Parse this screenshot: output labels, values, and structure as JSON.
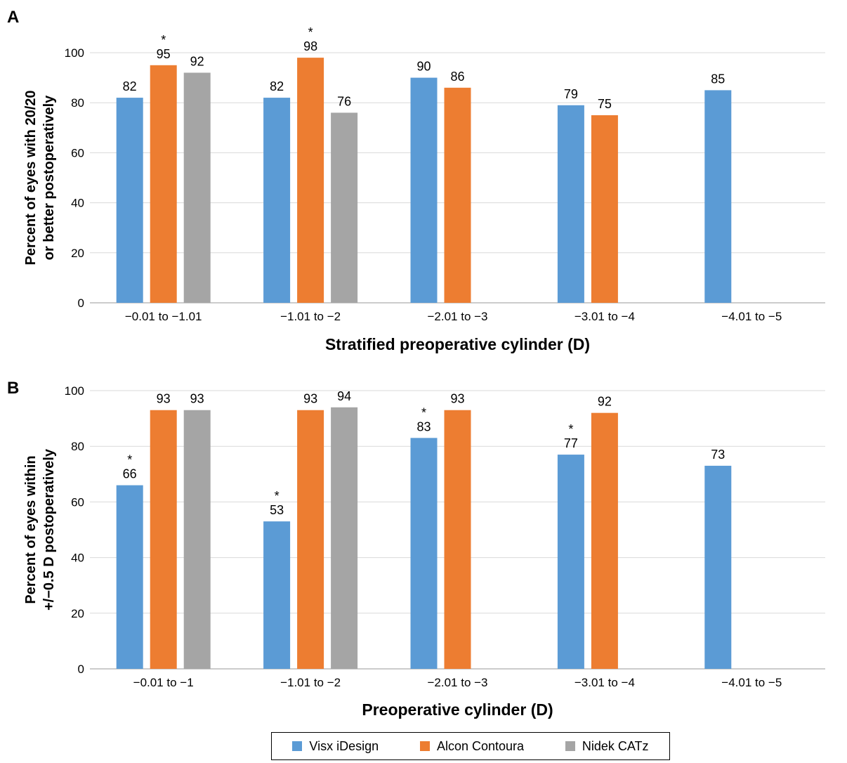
{
  "colors": {
    "Visx iDesign": "#5b9bd5",
    "Alcon Contoura": "#ed7d31",
    "Nidek CATz": "#a5a5a5"
  },
  "legend": [
    "Visx iDesign",
    "Alcon Contoura",
    "Nidek CATz"
  ],
  "chart_data": [
    {
      "panel": "A",
      "type": "bar",
      "ylabel_lines": [
        "Percent of eyes with 20/20",
        "or better postoperatively"
      ],
      "xlabel": "Stratified preoperative cylinder (D)",
      "categories": [
        "−0.01 to −1.01",
        "−1.01 to −2",
        "−2.01 to −3",
        "−3.01 to −4",
        "−4.01 to −5"
      ],
      "ylim": [
        0,
        100
      ],
      "yticks": [
        0,
        20,
        40,
        60,
        80,
        100
      ],
      "grid": true,
      "series": [
        {
          "name": "Visx iDesign",
          "values": [
            82,
            82,
            90,
            79,
            85
          ],
          "asterisks": [
            false,
            false,
            false,
            false,
            false
          ]
        },
        {
          "name": "Alcon Contoura",
          "values": [
            95,
            98,
            86,
            75,
            null
          ],
          "asterisks": [
            true,
            true,
            false,
            false,
            false
          ]
        },
        {
          "name": "Nidek CATz",
          "values": [
            92,
            76,
            null,
            null,
            null
          ],
          "asterisks": [
            false,
            false,
            false,
            false,
            false
          ]
        }
      ]
    },
    {
      "panel": "B",
      "type": "bar",
      "ylabel_lines": [
        "Percent of eyes within",
        "+/−0.5 D postoperatively"
      ],
      "xlabel": "Preoperative cylinder (D)",
      "categories": [
        "−0.01 to −1",
        "−1.01 to −2",
        "−2.01 to −3",
        "−3.01 to −4",
        "−4.01 to −5"
      ],
      "ylim": [
        0,
        100
      ],
      "yticks": [
        0,
        20,
        40,
        60,
        80,
        100
      ],
      "grid": true,
      "series": [
        {
          "name": "Visx iDesign",
          "values": [
            66,
            53,
            83,
            77,
            73
          ],
          "asterisks": [
            true,
            true,
            true,
            true,
            false
          ]
        },
        {
          "name": "Alcon Contoura",
          "values": [
            93,
            93,
            93,
            92,
            null
          ],
          "asterisks": [
            false,
            false,
            false,
            false,
            false
          ]
        },
        {
          "name": "Nidek CATz",
          "values": [
            93,
            94,
            null,
            null,
            null
          ],
          "asterisks": [
            false,
            false,
            false,
            false,
            false
          ]
        }
      ]
    }
  ]
}
